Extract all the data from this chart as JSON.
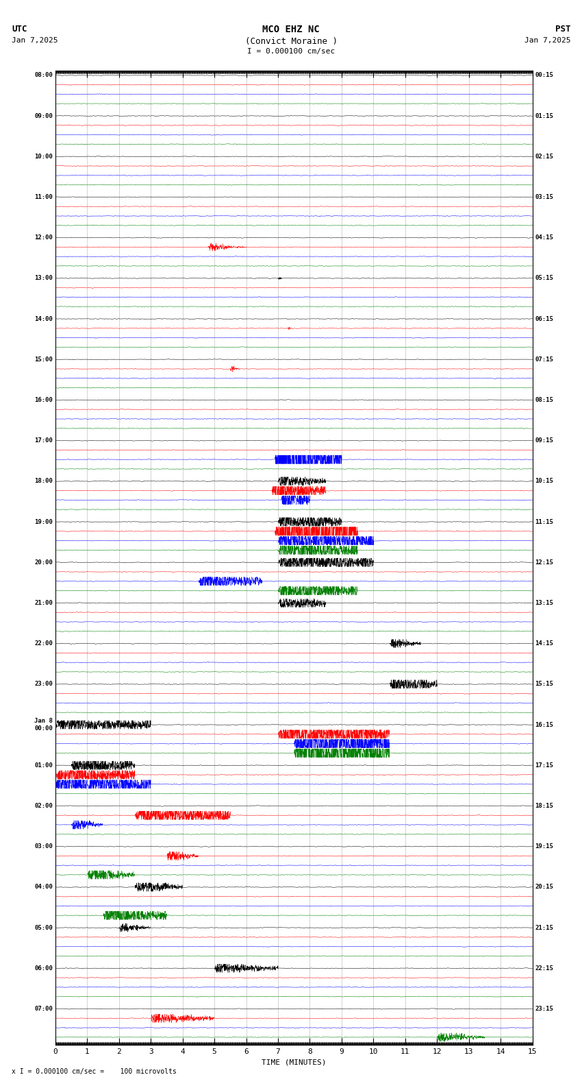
{
  "title_line1": "MCO EHZ NC",
  "title_line2": "(Convict Moraine )",
  "scale_text": "I = 0.000100 cm/sec",
  "utc_label": "UTC",
  "pst_label": "PST",
  "date_left": "Jan 7,2025",
  "date_right": "Jan 7,2025",
  "xlabel": "TIME (MINUTES)",
  "footer_text": "x I = 0.000100 cm/sec =    100 microvolts",
  "bg_color": "#ffffff",
  "grid_color": "#999999",
  "colors": [
    "black",
    "red",
    "blue",
    "green"
  ],
  "utc_times": [
    "08:00",
    "09:00",
    "10:00",
    "11:00",
    "12:00",
    "13:00",
    "14:00",
    "15:00",
    "16:00",
    "17:00",
    "18:00",
    "19:00",
    "20:00",
    "21:00",
    "22:00",
    "23:00",
    "Jan 8\n00:00",
    "01:00",
    "02:00",
    "03:00",
    "04:00",
    "05:00",
    "06:00",
    "07:00"
  ],
  "pst_times": [
    "00:15",
    "01:15",
    "02:15",
    "03:15",
    "04:15",
    "05:15",
    "06:15",
    "07:15",
    "08:15",
    "09:15",
    "10:15",
    "11:15",
    "12:15",
    "13:15",
    "14:15",
    "15:15",
    "16:15",
    "17:15",
    "18:15",
    "19:15",
    "20:15",
    "21:15",
    "22:15",
    "23:15"
  ],
  "n_rows": 24,
  "n_channels": 4,
  "minutes": 15,
  "spm": 200,
  "base_noise": 0.06,
  "events": [
    {
      "row": 4,
      "ch": 1,
      "t": 4.8,
      "t2": 6.0,
      "amp": 0.35,
      "decay": 3.0
    },
    {
      "row": 5,
      "ch": 0,
      "t": 7.0,
      "t2": 7.3,
      "amp": 0.5,
      "decay": 8.0
    },
    {
      "row": 6,
      "ch": 1,
      "t": 7.3,
      "t2": 7.5,
      "amp": 0.3,
      "decay": 5.0
    },
    {
      "row": 7,
      "ch": 1,
      "t": 5.5,
      "t2": 5.8,
      "amp": 0.6,
      "decay": 4.0
    },
    {
      "row": 9,
      "ch": 2,
      "t": 6.9,
      "t2": 7.6,
      "amp": 3.5,
      "decay": 2.0
    },
    {
      "row": 9,
      "ch": 2,
      "t": 7.6,
      "t2": 9.0,
      "amp": 1.5,
      "decay": 0.8
    },
    {
      "row": 10,
      "ch": 0,
      "t": 7.0,
      "t2": 8.5,
      "amp": 0.6,
      "decay": 1.5
    },
    {
      "row": 10,
      "ch": 1,
      "t": 6.8,
      "t2": 8.5,
      "amp": 0.8,
      "decay": 1.0
    },
    {
      "row": 10,
      "ch": 2,
      "t": 7.1,
      "t2": 8.0,
      "amp": 1.5,
      "decay": 1.5
    },
    {
      "row": 11,
      "ch": 0,
      "t": 7.0,
      "t2": 9.0,
      "amp": 0.6,
      "decay": 0.8
    },
    {
      "row": 11,
      "ch": 1,
      "t": 6.9,
      "t2": 9.5,
      "amp": 2.5,
      "decay": 0.6
    },
    {
      "row": 11,
      "ch": 2,
      "t": 7.0,
      "t2": 10.0,
      "amp": 0.8,
      "decay": 0.5
    },
    {
      "row": 11,
      "ch": 3,
      "t": 7.0,
      "t2": 9.5,
      "amp": 0.7,
      "decay": 0.6
    },
    {
      "row": 12,
      "ch": 0,
      "t": 7.0,
      "t2": 10.0,
      "amp": 0.5,
      "decay": 0.4
    },
    {
      "row": 12,
      "ch": 2,
      "t": 4.5,
      "t2": 6.5,
      "amp": 0.6,
      "decay": 1.0
    },
    {
      "row": 12,
      "ch": 3,
      "t": 7.0,
      "t2": 9.5,
      "amp": 0.6,
      "decay": 0.5
    },
    {
      "row": 13,
      "ch": 0,
      "t": 7.0,
      "t2": 8.5,
      "amp": 0.4,
      "decay": 0.6
    },
    {
      "row": 14,
      "ch": 0,
      "t": 10.5,
      "t2": 11.5,
      "amp": 0.5,
      "decay": 2.0
    },
    {
      "row": 15,
      "ch": 0,
      "t": 10.5,
      "t2": 12.0,
      "amp": 0.6,
      "decay": 1.0
    },
    {
      "row": 16,
      "ch": 0,
      "t": 0.0,
      "t2": 3.0,
      "amp": 0.4,
      "decay": 0.5
    },
    {
      "row": 16,
      "ch": 1,
      "t": 7.0,
      "t2": 10.5,
      "amp": 0.8,
      "decay": 0.5
    },
    {
      "row": 16,
      "ch": 2,
      "t": 7.5,
      "t2": 10.5,
      "amp": 1.2,
      "decay": 0.4
    },
    {
      "row": 16,
      "ch": 3,
      "t": 7.5,
      "t2": 10.5,
      "amp": 1.5,
      "decay": 0.4
    },
    {
      "row": 17,
      "ch": 0,
      "t": 0.5,
      "t2": 2.5,
      "amp": 0.5,
      "decay": 0.6
    },
    {
      "row": 17,
      "ch": 1,
      "t": 0.0,
      "t2": 2.5,
      "amp": 0.6,
      "decay": 0.5
    },
    {
      "row": 17,
      "ch": 2,
      "t": 0.0,
      "t2": 3.0,
      "amp": 0.8,
      "decay": 0.4
    },
    {
      "row": 18,
      "ch": 1,
      "t": 2.5,
      "t2": 5.5,
      "amp": 0.7,
      "decay": 0.8
    },
    {
      "row": 18,
      "ch": 2,
      "t": 0.5,
      "t2": 1.5,
      "amp": 0.5,
      "decay": 2.0
    },
    {
      "row": 19,
      "ch": 1,
      "t": 3.5,
      "t2": 4.5,
      "amp": 0.5,
      "decay": 2.0
    },
    {
      "row": 19,
      "ch": 3,
      "t": 1.0,
      "t2": 2.5,
      "amp": 0.6,
      "decay": 1.5
    },
    {
      "row": 20,
      "ch": 0,
      "t": 2.5,
      "t2": 4.0,
      "amp": 0.5,
      "decay": 1.5
    },
    {
      "row": 20,
      "ch": 3,
      "t": 1.5,
      "t2": 3.5,
      "amp": 0.7,
      "decay": 1.0
    },
    {
      "row": 21,
      "ch": 0,
      "t": 2.0,
      "t2": 3.0,
      "amp": 0.4,
      "decay": 2.0
    },
    {
      "row": 22,
      "ch": 0,
      "t": 5.0,
      "t2": 7.0,
      "amp": 0.4,
      "decay": 1.5
    },
    {
      "row": 23,
      "ch": 1,
      "t": 3.0,
      "t2": 5.0,
      "amp": 0.4,
      "decay": 1.5
    },
    {
      "row": 23,
      "ch": 3,
      "t": 12.0,
      "t2": 13.5,
      "amp": 0.4,
      "decay": 2.0
    }
  ],
  "big_spike": {
    "row": 9,
    "ch": 2,
    "t": 7.0,
    "amp": 20.0
  }
}
